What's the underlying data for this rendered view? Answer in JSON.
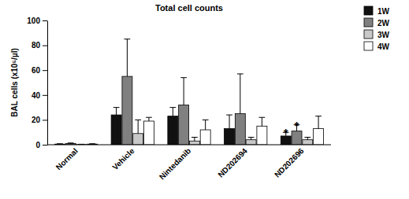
{
  "chart_data": {
    "type": "bar",
    "title": "Total cell counts",
    "y_label": "BAL cells (x10⁵/µl)",
    "categories": [
      "Normal",
      "Vehicle",
      "Nintedanib",
      "ND202694",
      "ND202696"
    ],
    "series": [
      {
        "name": "1W",
        "color": "#111111",
        "values": [
          0.5,
          24,
          23,
          13,
          7
        ],
        "errors": [
          0.3,
          6,
          7,
          11,
          3
        ]
      },
      {
        "name": "2W",
        "color": "#808080",
        "values": [
          1,
          55,
          32,
          25,
          11
        ],
        "errors": [
          0.4,
          30,
          22,
          32,
          5
        ]
      },
      {
        "name": "3W",
        "color": "#c8c8c8",
        "values": [
          0.2,
          9,
          3,
          4,
          4
        ],
        "errors": [
          0.2,
          11,
          3,
          2,
          2
        ]
      },
      {
        "name": "4W",
        "color": "#ffffff",
        "values": [
          0.5,
          19,
          12,
          15,
          13
        ],
        "errors": [
          0.3,
          3,
          8,
          7,
          10
        ]
      }
    ],
    "annotations": [
      {
        "text": "*",
        "category": "ND202696",
        "series": "1W"
      },
      {
        "text": "*",
        "category": "ND202696",
        "series": "2W"
      }
    ],
    "ylim": [
      0,
      100
    ],
    "yticks": [
      0,
      20,
      40,
      60,
      80,
      100
    ],
    "grid": false,
    "legend": "top-right"
  }
}
